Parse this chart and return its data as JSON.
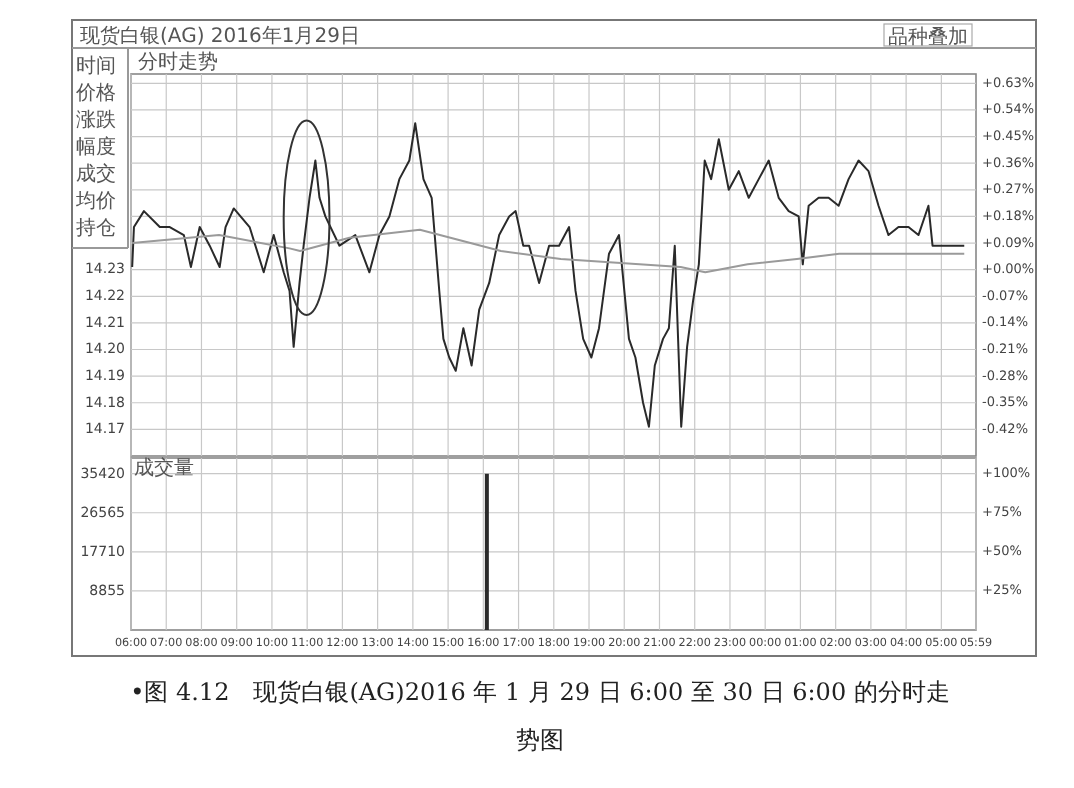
{
  "chart_data": [
    {
      "type": "line",
      "title": "现货白银(AG) 2016年1月29日",
      "subtitle": "分时走势",
      "series": [
        {
          "color": "#2a2a2a",
          "x": [
            "2016-01-29T06:02",
            "2016-01-29T06:05",
            "2016-01-29T06:22",
            "2016-01-29T06:49",
            "2016-01-29T07:06",
            "2016-01-29T07:30",
            "2016-01-29T07:42",
            "2016-01-29T07:57",
            "2016-01-29T08:14",
            "2016-01-29T08:31",
            "2016-01-29T08:41",
            "2016-01-29T08:55",
            "2016-01-29T09:22",
            "2016-01-29T09:46",
            "2016-01-29T10:03",
            "2016-01-29T10:20",
            "2016-01-29T10:30",
            "2016-01-29T10:37",
            "2016-01-29T10:47",
            "2016-01-29T10:54",
            "2016-01-29T11:04",
            "2016-01-29T11:14",
            "2016-01-29T11:21",
            "2016-01-29T11:31",
            "2016-01-29T11:55",
            "2016-01-29T12:22",
            "2016-01-29T12:46",
            "2016-01-29T13:03",
            "2016-01-29T13:20",
            "2016-01-29T13:37",
            "2016-01-29T13:54",
            "2016-01-29T14:04",
            "2016-01-29T14:18",
            "2016-01-29T14:32",
            "2016-01-29T14:45",
            "2016-01-29T14:52",
            "2016-01-29T15:02",
            "2016-01-29T15:13",
            "2016-01-29T15:26",
            "2016-01-29T15:40",
            "2016-01-29T15:53",
            "2016-01-29T16:10",
            "2016-01-29T16:27",
            "2016-01-29T16:44",
            "2016-01-29T16:55",
            "2016-01-29T17:08",
            "2016-01-29T17:18",
            "2016-01-29T17:35",
            "2016-01-29T17:52",
            "2016-01-29T18:09",
            "2016-01-29T18:26",
            "2016-01-29T18:37",
            "2016-01-29T18:50",
            "2016-01-29T19:04",
            "2016-01-29T19:17",
            "2016-01-29T19:34",
            "2016-01-29T19:51",
            "2016-01-29T20:08",
            "2016-01-29T20:19",
            "2016-01-29T20:32",
            "2016-01-29T20:42",
            "2016-01-29T20:52",
            "2016-01-29T21:06",
            "2016-01-29T21:16",
            "2016-01-29T21:26",
            "2016-01-29T21:37",
            "2016-01-29T21:47",
            "2016-01-29T21:57",
            "2016-01-29T22:07",
            "2016-01-29T22:17",
            "2016-01-29T22:28",
            "2016-01-29T22:41",
            "2016-01-29T22:58",
            "2016-01-29T23:15",
            "2016-01-29T23:32",
            "2016-01-29T23:49",
            "2016-01-30T00:06",
            "2016-01-30T00:23",
            "2016-01-30T00:40",
            "2016-01-30T00:57",
            "2016-01-30T01:04",
            "2016-01-30T01:14",
            "2016-01-30T01:31",
            "2016-01-30T01:48",
            "2016-01-30T02:05",
            "2016-01-30T02:22",
            "2016-01-30T02:39",
            "2016-01-30T02:56",
            "2016-01-30T03:13",
            "2016-01-30T03:30",
            "2016-01-30T03:47",
            "2016-01-30T04:04",
            "2016-01-30T04:21",
            "2016-01-30T04:38",
            "2016-01-30T04:45",
            "2016-01-30T05:12",
            "2016-01-30T05:39"
          ],
          "values": [
            14.231,
            14.246,
            14.252,
            14.246,
            14.246,
            14.243,
            14.231,
            14.246,
            14.239,
            14.231,
            14.246,
            14.253,
            14.246,
            14.229,
            14.243,
            14.229,
            14.222,
            14.201,
            14.225,
            14.239,
            14.257,
            14.271,
            14.257,
            14.25,
            14.239,
            14.243,
            14.229,
            14.243,
            14.25,
            14.264,
            14.271,
            14.285,
            14.264,
            14.257,
            14.222,
            14.204,
            14.197,
            14.192,
            14.208,
            14.194,
            14.215,
            14.225,
            14.243,
            14.25,
            14.252,
            14.239,
            14.239,
            14.225,
            14.239,
            14.239,
            14.246,
            14.222,
            14.204,
            14.197,
            14.208,
            14.236,
            14.243,
            14.204,
            14.197,
            14.18,
            14.171,
            14.194,
            14.204,
            14.208,
            14.239,
            14.171,
            14.201,
            14.218,
            14.232,
            14.271,
            14.264,
            14.279,
            14.26,
            14.267,
            14.257,
            14.264,
            14.271,
            14.257,
            14.252,
            14.25,
            14.232,
            14.254,
            14.257,
            14.257,
            14.254,
            14.264,
            14.271,
            14.267,
            14.254,
            14.243,
            14.246,
            14.246,
            14.243,
            14.254,
            14.239,
            14.239,
            14.239
          ]
        },
        {
          "color": "#9a9a9a",
          "x": [
            "2016-01-29T06:02",
            "2016-01-29T08:30",
            "2016-01-29T10:30",
            "2016-01-29T10:48",
            "2016-01-29T12:12",
            "2016-01-29T14:12",
            "2016-01-29T16:30",
            "2016-01-29T18:12",
            "2016-01-29T21:36",
            "2016-01-29T22:18",
            "2016-01-29T23:30",
            "2016-01-30T00:54",
            "2016-01-30T02:06",
            "2016-01-30T05:39"
          ],
          "values": [
            14.24,
            14.243,
            14.238,
            14.237,
            14.242,
            14.245,
            14.237,
            14.234,
            14.231,
            14.229,
            14.232,
            14.234,
            14.236,
            14.236
          ]
        }
      ],
      "xlim": [
        "2016-01-29T06:00",
        "2016-01-30T05:59"
      ],
      "xticks": [
        {
          "value": "2016-01-29T06:00",
          "label": null
        },
        {
          "value": "2016-01-29T07:00",
          "label": null
        },
        {
          "value": "2016-01-29T08:00",
          "label": null
        },
        {
          "value": "2016-01-29T09:00",
          "label": null
        },
        {
          "value": "2016-01-29T10:00",
          "label": null
        },
        {
          "value": "2016-01-29T11:00",
          "label": null
        },
        {
          "value": "2016-01-29T12:00",
          "label": null
        },
        {
          "value": "2016-01-29T13:00",
          "label": null
        },
        {
          "value": "2016-01-29T14:00",
          "label": null
        },
        {
          "value": "2016-01-29T15:00",
          "label": null
        },
        {
          "value": "2016-01-29T16:00",
          "label": null
        },
        {
          "value": "2016-01-29T17:00",
          "label": null
        },
        {
          "value": "2016-01-29T18:00",
          "label": null
        },
        {
          "value": "2016-01-29T19:00",
          "label": null
        },
        {
          "value": "2016-01-29T20:00",
          "label": null
        },
        {
          "value": "2016-01-29T21:00",
          "label": null
        },
        {
          "value": "2016-01-29T22:00",
          "label": null
        },
        {
          "value": "2016-01-29T23:00",
          "label": null
        },
        {
          "value": "2016-01-30T00:00",
          "label": null
        },
        {
          "value": "2016-01-30T01:00",
          "label": null
        },
        {
          "value": "2016-01-30T02:00",
          "label": null
        },
        {
          "value": "2016-01-30T03:00",
          "label": null
        },
        {
          "value": "2016-01-30T04:00",
          "label": null
        },
        {
          "value": "2016-01-30T05:00",
          "label": null
        }
      ],
      "ylim": [
        14.16,
        14.3035
      ],
      "yticks": [
        14.23,
        14.22,
        14.21,
        {
          "value": 14.2,
          "label": "14.20"
        },
        14.19,
        14.18,
        14.17
      ],
      "y2lim": [
        -0.63,
        0.6615
      ],
      "y2ticks": [
        {
          "value": 0.63,
          "label": "+0.63%"
        },
        {
          "value": 0.54,
          "label": "+0.54%"
        },
        {
          "value": 0.45,
          "label": "+0.45%"
        },
        {
          "value": 0.36,
          "label": "+0.36%"
        },
        {
          "value": 0.27,
          "label": "+0.27%"
        },
        {
          "value": 0.18,
          "label": "+0.18%"
        },
        {
          "value": 0.09,
          "label": "+0.09%"
        },
        {
          "value": 0,
          "label": "+0.00%"
        }
      ],
      "y3lim": [
        -0.49,
        0.5145
      ],
      "y3ticks": [
        {
          "value": -0.07,
          "label": "-0.07%"
        },
        {
          "value": -0.14,
          "label": "-0.14%"
        },
        {
          "value": -0.21,
          "label": "-0.21%"
        },
        {
          "value": -0.28,
          "label": "-0.28%"
        },
        {
          "value": -0.35,
          "label": "-0.35%"
        },
        {
          "value": -0.42,
          "label": "-0.42%"
        }
      ],
      "grid": "xy",
      "tick_labels": "y",
      "annotations": [
        "时间",
        "价格",
        "涨跌",
        "幅度",
        "成交",
        "均价",
        "持仓",
        "品种叠加"
      ]
    },
    {
      "type": "bar",
      "title": "成交量",
      "x": [
        "2016-01-29T16:06"
      ],
      "values": [
        35420
      ],
      "color": "#2a2a2a",
      "xlim": [
        "2016-01-29T06:00",
        "2016-01-30T05:59"
      ],
      "xticks": [
        {
          "value": "2016-01-29T06:00",
          "label": "06:00"
        },
        {
          "value": "2016-01-29T07:00",
          "label": "07:00"
        },
        {
          "value": "2016-01-29T08:00",
          "label": "08:00"
        },
        {
          "value": "2016-01-29T09:00",
          "label": "09:00"
        },
        {
          "value": "2016-01-29T10:00",
          "label": "10:00"
        },
        {
          "value": "2016-01-29T11:00",
          "label": "11:00"
        },
        {
          "value": "2016-01-29T12:00",
          "label": "12:00"
        },
        {
          "value": "2016-01-29T13:00",
          "label": "13:00"
        },
        {
          "value": "2016-01-29T14:00",
          "label": "14:00"
        },
        {
          "value": "2016-01-29T15:00",
          "label": "15:00"
        },
        {
          "value": "2016-01-29T16:00",
          "label": "16:00"
        },
        {
          "value": "2016-01-29T17:00",
          "label": "17:00"
        },
        {
          "value": "2016-01-29T18:00",
          "label": "18:00"
        },
        {
          "value": "2016-01-29T19:00",
          "label": "19:00"
        },
        {
          "value": "2016-01-29T20:00",
          "label": "20:00"
        },
        {
          "value": "2016-01-29T21:00",
          "label": "21:00"
        },
        {
          "value": "2016-01-29T22:00",
          "label": "22:00"
        },
        {
          "value": "2016-01-29T23:00",
          "label": "23:00"
        },
        {
          "value": "2016-01-30T00:00",
          "label": "00:00"
        },
        {
          "value": "2016-01-30T01:00",
          "label": "01:00"
        },
        {
          "value": "2016-01-30T02:00",
          "label": "02:00"
        },
        {
          "value": "2016-01-30T03:00",
          "label": "03:00"
        },
        {
          "value": "2016-01-30T04:00",
          "label": "04:00"
        },
        {
          "value": "2016-01-30T05:00",
          "label": "05:00"
        },
        {
          "value": "2016-01-30T05:59",
          "label": "05:59"
        }
      ],
      "ylim": [
        0,
        39000
      ],
      "yticks": [
        8855,
        17710,
        26565,
        35420
      ],
      "y2lim": [
        0,
        110
      ],
      "y2ticks": [
        {
          "value": 25,
          "label": "+25%"
        },
        {
          "value": 50,
          "label": "+50%"
        },
        {
          "value": 75,
          "label": "+75%"
        },
        {
          "value": 100,
          "label": "+100%"
        }
      ],
      "grid": "xy",
      "annotations": [
        "•图 4.12　现货白银(AG)2016 年 1 月 29 日 6:00 至 30 日 6:00 的分时走势图"
      ]
    }
  ]
}
